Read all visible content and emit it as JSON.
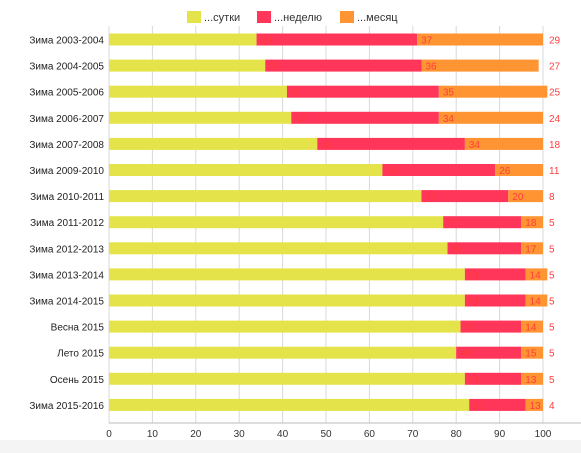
{
  "colors": {
    "series": [
      "#e4e44a",
      "#ff3559",
      "#ff9432"
    ],
    "label_text": "#ff3d3d",
    "grid": "#d8d8d8",
    "axis_text": "#333333"
  },
  "chart_data": {
    "type": "bar",
    "orientation": "horizontal",
    "stacked": true,
    "legend_position": "top-center",
    "grid": true,
    "xlim": [
      0,
      100
    ],
    "x_ticks": [
      0,
      10,
      20,
      30,
      40,
      50,
      60,
      70,
      80,
      90,
      100
    ],
    "categories": [
      "Зима 2003-2004",
      "Зима 2004-2005",
      "Зима 2005-2006",
      "Зима 2006-2007",
      "Зима 2007-2008",
      "Зима 2009-2010",
      "Зима 2010-2011",
      "Зима 2011-2012",
      "Зима 2012-2013",
      "Зима 2013-2014",
      "Зима 2014-2015",
      "Весна 2015",
      "Лето 2015",
      "Осень 2015",
      "Зима 2015-2016"
    ],
    "series": [
      {
        "name": "...сутки",
        "values": [
          29,
          27,
          25,
          24,
          18,
          11,
          8,
          5,
          5,
          5,
          5,
          5,
          5,
          5,
          4
        ]
      },
      {
        "name": "...неделю",
        "values": [
          37,
          36,
          35,
          34,
          34,
          26,
          20,
          18,
          17,
          14,
          14,
          14,
          15,
          13,
          13
        ]
      },
      {
        "name": "...месяц",
        "values": [
          34,
          36,
          41,
          42,
          48,
          63,
          72,
          77,
          78,
          82,
          82,
          81,
          80,
          82,
          83
        ]
      }
    ]
  }
}
